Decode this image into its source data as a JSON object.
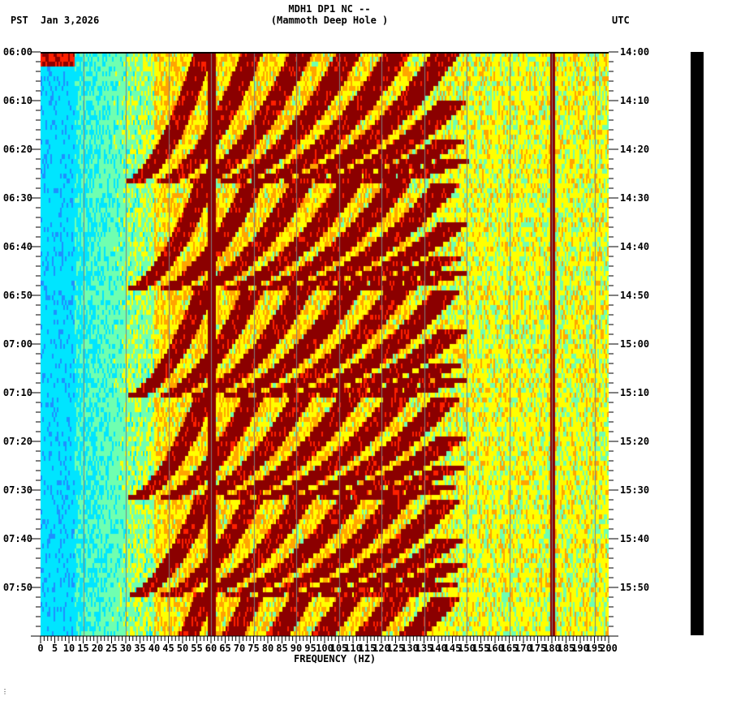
{
  "header": {
    "station_line": "MDH1 DP1 NC --",
    "location_line": "(Mammoth Deep Hole )",
    "left_timezone": "PST",
    "date": "Jan 3,2026",
    "right_timezone": "UTC"
  },
  "colors": {
    "colormap": [
      "#0a3cff",
      "#1e90ff",
      "#00e5ff",
      "#6fffb0",
      "#ffff00",
      "#ffa500",
      "#ff2000",
      "#8b0000"
    ],
    "grid_line": "#7f7f7f",
    "background": "#ffffff",
    "activity_bar": "#000000"
  },
  "chart_data": {
    "type": "heatmap",
    "title": "MDH1 DP1 NC -- (Mammoth Deep Hole )",
    "xlabel": "FREQUENCY (HZ)",
    "ylabel_left": "PST",
    "ylabel_right": "UTC",
    "xlim": [
      0,
      200
    ],
    "x_ticks": [
      0,
      5,
      10,
      15,
      20,
      25,
      30,
      35,
      40,
      45,
      50,
      55,
      60,
      65,
      70,
      75,
      80,
      85,
      90,
      95,
      100,
      105,
      110,
      115,
      120,
      125,
      130,
      135,
      140,
      145,
      150,
      155,
      160,
      165,
      170,
      175,
      180,
      185,
      190,
      195,
      200
    ],
    "y_ticks_left": [
      "06:00",
      "06:10",
      "06:20",
      "06:30",
      "06:40",
      "06:50",
      "07:00",
      "07:10",
      "07:20",
      "07:30",
      "07:40",
      "07:50"
    ],
    "y_ticks_right": [
      "14:00",
      "14:10",
      "14:20",
      "14:30",
      "14:40",
      "14:50",
      "15:00",
      "15:10",
      "15:20",
      "15:30",
      "15:40",
      "15:50"
    ],
    "time_span_minutes": 120,
    "grid_on": true,
    "grid_x_every_hz": 15,
    "persistent_lines_hz": [
      60,
      180
    ],
    "low_freq_background": "blue/cyan (0-35 Hz)",
    "high_freq_background": "yellow/green (35-200 Hz)",
    "chirp_cycles_start_minutes": [
      0,
      27,
      49,
      71,
      92,
      112
    ],
    "chirp_harmonics": 9,
    "notes": "Repeating upward-sweeping harmonic chirps (dark red) from ~20-45 Hz rising toward 120+ Hz each ~21-27 min cycle; strong constant 60 Hz and 180 Hz lines."
  },
  "axis": {
    "x_title": "FREQUENCY (HZ)"
  },
  "footer": {
    "mark": "⋮"
  }
}
